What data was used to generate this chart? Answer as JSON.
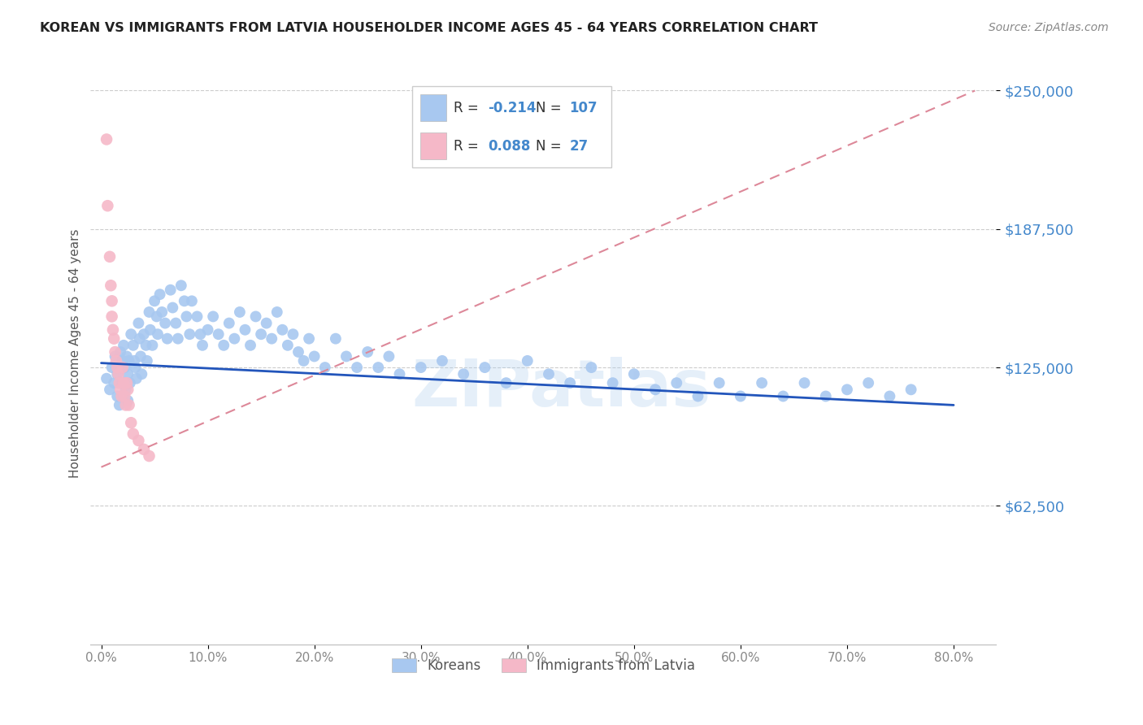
{
  "title": "KOREAN VS IMMIGRANTS FROM LATVIA HOUSEHOLDER INCOME AGES 45 - 64 YEARS CORRELATION CHART",
  "source": "Source: ZipAtlas.com",
  "ylabel": "Householder Income Ages 45 - 64 years",
  "xlabel_ticks": [
    "0.0%",
    "10.0%",
    "20.0%",
    "30.0%",
    "40.0%",
    "50.0%",
    "60.0%",
    "70.0%",
    "80.0%"
  ],
  "xlabel_vals": [
    0.0,
    0.1,
    0.2,
    0.3,
    0.4,
    0.5,
    0.6,
    0.7,
    0.8
  ],
  "ytick_labels": [
    "$62,500",
    "$125,000",
    "$187,500",
    "$250,000"
  ],
  "ytick_vals": [
    62500,
    125000,
    187500,
    250000
  ],
  "ylim": [
    0,
    262500
  ],
  "xlim": [
    -0.01,
    0.84
  ],
  "legend_label1": "Koreans",
  "legend_label2": "Immigrants from Latvia",
  "blue_color": "#A8C8F0",
  "pink_color": "#F5B8C8",
  "blue_line_color": "#2255BB",
  "pink_line_color": "#DD8899",
  "grid_color": "#CCCCCC",
  "title_color": "#222222",
  "axis_label_color": "#555555",
  "ytick_color": "#4488CC",
  "xtick_color": "#888888",
  "source_color": "#888888",
  "watermark": "ZIPatlas",
  "blue_scatter_x": [
    0.005,
    0.008,
    0.01,
    0.012,
    0.013,
    0.015,
    0.015,
    0.016,
    0.017,
    0.018,
    0.02,
    0.02,
    0.021,
    0.022,
    0.023,
    0.024,
    0.025,
    0.025,
    0.026,
    0.027,
    0.028,
    0.03,
    0.031,
    0.032,
    0.033,
    0.035,
    0.036,
    0.037,
    0.038,
    0.04,
    0.042,
    0.043,
    0.045,
    0.046,
    0.048,
    0.05,
    0.052,
    0.053,
    0.055,
    0.057,
    0.06,
    0.062,
    0.065,
    0.067,
    0.07,
    0.072,
    0.075,
    0.078,
    0.08,
    0.083,
    0.085,
    0.09,
    0.093,
    0.095,
    0.1,
    0.105,
    0.11,
    0.115,
    0.12,
    0.125,
    0.13,
    0.135,
    0.14,
    0.145,
    0.15,
    0.155,
    0.16,
    0.165,
    0.17,
    0.175,
    0.18,
    0.185,
    0.19,
    0.195,
    0.2,
    0.21,
    0.22,
    0.23,
    0.24,
    0.25,
    0.26,
    0.27,
    0.28,
    0.3,
    0.32,
    0.34,
    0.36,
    0.38,
    0.4,
    0.42,
    0.44,
    0.46,
    0.48,
    0.5,
    0.52,
    0.54,
    0.56,
    0.58,
    0.6,
    0.62,
    0.64,
    0.66,
    0.68,
    0.7,
    0.72,
    0.74,
    0.76
  ],
  "blue_scatter_y": [
    120000,
    115000,
    125000,
    118000,
    130000,
    122000,
    112000,
    125000,
    108000,
    132000,
    128000,
    118000,
    135000,
    125000,
    115000,
    130000,
    122000,
    110000,
    128000,
    118000,
    140000,
    135000,
    128000,
    125000,
    120000,
    145000,
    138000,
    130000,
    122000,
    140000,
    135000,
    128000,
    150000,
    142000,
    135000,
    155000,
    148000,
    140000,
    158000,
    150000,
    145000,
    138000,
    160000,
    152000,
    145000,
    138000,
    162000,
    155000,
    148000,
    140000,
    155000,
    148000,
    140000,
    135000,
    142000,
    148000,
    140000,
    135000,
    145000,
    138000,
    150000,
    142000,
    135000,
    148000,
    140000,
    145000,
    138000,
    150000,
    142000,
    135000,
    140000,
    132000,
    128000,
    138000,
    130000,
    125000,
    138000,
    130000,
    125000,
    132000,
    125000,
    130000,
    122000,
    125000,
    128000,
    122000,
    125000,
    118000,
    128000,
    122000,
    118000,
    125000,
    118000,
    122000,
    115000,
    118000,
    112000,
    118000,
    112000,
    118000,
    112000,
    118000,
    112000,
    115000,
    118000,
    112000,
    115000
  ],
  "pink_scatter_x": [
    0.005,
    0.006,
    0.008,
    0.009,
    0.01,
    0.01,
    0.011,
    0.012,
    0.013,
    0.014,
    0.015,
    0.016,
    0.017,
    0.018,
    0.019,
    0.02,
    0.021,
    0.022,
    0.023,
    0.024,
    0.025,
    0.026,
    0.028,
    0.03,
    0.035,
    0.04,
    0.045
  ],
  "pink_scatter_y": [
    228000,
    198000,
    175000,
    162000,
    155000,
    148000,
    142000,
    138000,
    132000,
    128000,
    125000,
    122000,
    118000,
    115000,
    112000,
    125000,
    118000,
    112000,
    108000,
    118000,
    115000,
    108000,
    100000,
    95000,
    92000,
    88000,
    85000
  ],
  "blue_trend_x": [
    0.0,
    0.8
  ],
  "blue_trend_y": [
    127000,
    108000
  ],
  "pink_trend_x": [
    0.0,
    0.82
  ],
  "pink_trend_y": [
    80000,
    250000
  ],
  "dot_size_blue": 100,
  "dot_size_pink": 110
}
